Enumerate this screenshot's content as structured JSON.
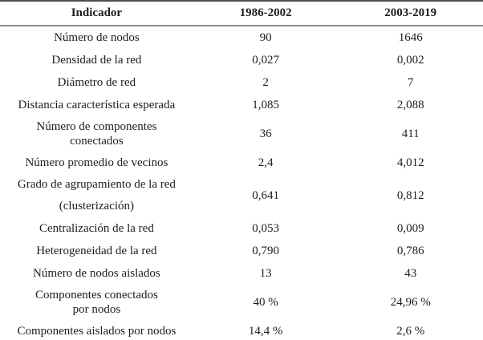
{
  "table": {
    "headers": [
      "Indicador",
      "1986-2002",
      "2003-2019"
    ],
    "rows": [
      {
        "indicator": "Número de nodos",
        "v1": "90",
        "v2": "1646"
      },
      {
        "indicator": "Densidad de la red",
        "v1": "0,027",
        "v2": "0,002"
      },
      {
        "indicator": "Diámetro de red",
        "v1": "2",
        "v2": "7"
      },
      {
        "indicator": "Distancia característica esperada",
        "v1": "1,085",
        "v2": "2,088"
      },
      {
        "indicator": "Número de componentes\nconectados",
        "v1": "36",
        "v2": "411"
      },
      {
        "indicator": "Número promedio de vecinos",
        "v1": "2,4",
        "v2": "4,012"
      },
      {
        "indicator": "Grado de agrupamiento de la red\n(clusterización)",
        "v1": "0,641",
        "v2": "0,812"
      },
      {
        "indicator": "Centralización de la red",
        "v1": "0,053",
        "v2": "0,009"
      },
      {
        "indicator": "Heterogeneidad de la red",
        "v1": "0,790",
        "v2": "0,786"
      },
      {
        "indicator": "Número de nodos aislados",
        "v1": "13",
        "v2": "43"
      },
      {
        "indicator": "Componentes conectados\npor nodos",
        "v1": "40 %",
        "v2": "24,96 %"
      },
      {
        "indicator": "Componentes aislados por nodos",
        "v1": "14,4 %",
        "v2": "2,6 %"
      }
    ]
  },
  "colors": {
    "text": "#1d1d1d",
    "background": "#ffffff",
    "border_top": "#4d4d4d",
    "border_header": "#8c8c8c",
    "border_bottom": "#616161"
  }
}
